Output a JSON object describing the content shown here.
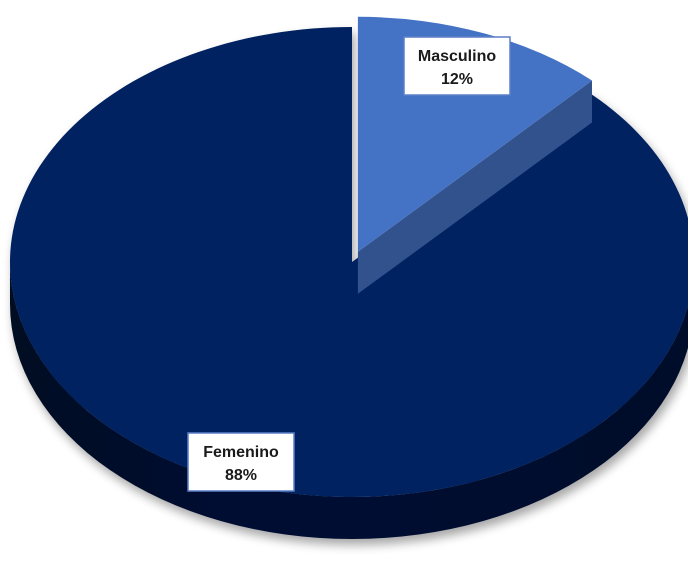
{
  "chart_data": {
    "type": "pie",
    "title": "",
    "style": "3d-exploded",
    "categories": [
      "Masculino",
      "Femenino"
    ],
    "values": [
      12,
      88
    ],
    "percent_labels": [
      "12%",
      "88%"
    ],
    "colors": [
      "#4472c4",
      "#002060"
    ],
    "exploded": [
      "Masculino"
    ],
    "legend": "none"
  }
}
